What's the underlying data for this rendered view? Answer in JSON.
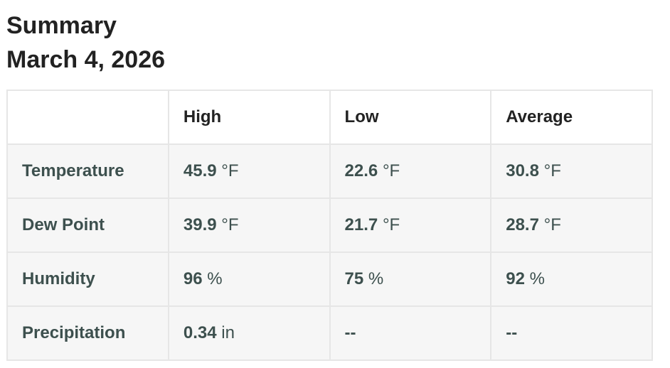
{
  "title": "Summary",
  "date": "March 4, 2026",
  "columns": [
    "",
    "High",
    "Low",
    "Average"
  ],
  "rows": [
    {
      "label": "Temperature",
      "cells": [
        {
          "v": "45.9",
          "u": "°F"
        },
        {
          "v": "22.6",
          "u": "°F"
        },
        {
          "v": "30.8",
          "u": "°F"
        }
      ]
    },
    {
      "label": "Dew Point",
      "cells": [
        {
          "v": "39.9",
          "u": "°F"
        },
        {
          "v": "21.7",
          "u": "°F"
        },
        {
          "v": "28.7",
          "u": "°F"
        }
      ]
    },
    {
      "label": "Humidity",
      "cells": [
        {
          "v": "96",
          "u": "%"
        },
        {
          "v": "75",
          "u": "%"
        },
        {
          "v": "92",
          "u": "%"
        }
      ]
    },
    {
      "label": "Precipitation",
      "cells": [
        {
          "v": "0.34",
          "u": "in"
        },
        {
          "v": "--",
          "u": ""
        },
        {
          "v": "--",
          "u": ""
        }
      ]
    }
  ]
}
